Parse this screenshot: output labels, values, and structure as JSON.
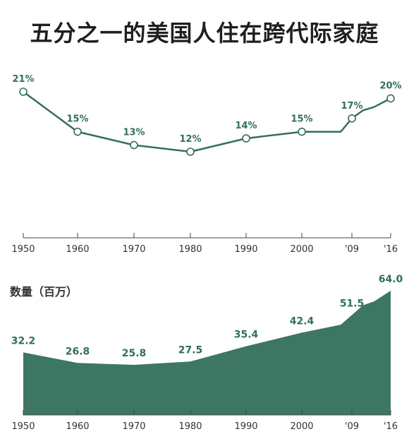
{
  "title": "五分之一的美国人住在跨代际家庭",
  "colors": {
    "accent": "#356e5c",
    "area": "#3d7764",
    "axis": "#444444"
  },
  "chart_data": [
    {
      "type": "line",
      "x_ticks": [
        "1950",
        "1960",
        "1970",
        "1980",
        "1990",
        "2000",
        "'09",
        "'16"
      ],
      "points": [
        {
          "year": 1950,
          "value": 21,
          "label": "21%"
        },
        {
          "year": 1960,
          "value": 15,
          "label": "15%"
        },
        {
          "year": 1970,
          "value": 13,
          "label": "13%"
        },
        {
          "year": 1980,
          "value": 12,
          "label": "12%"
        },
        {
          "year": 1990,
          "value": 14,
          "label": "14%"
        },
        {
          "year": 2000,
          "value": 15,
          "label": "15%"
        },
        {
          "year": 2009,
          "value": 17,
          "label": "17%"
        },
        {
          "year": 2016,
          "value": 20,
          "label": "20%"
        }
      ],
      "extra_trend_points": [
        {
          "year": 2007,
          "value": 15
        },
        {
          "year": 2011,
          "value": 18.2
        },
        {
          "year": 2013,
          "value": 18.7
        }
      ],
      "ylabel": "",
      "unit": "%"
    },
    {
      "type": "area",
      "ylabel": "数量（百万）",
      "x_ticks": [
        "1950",
        "1960",
        "1970",
        "1980",
        "1990",
        "2000",
        "'09",
        "'16"
      ],
      "points": [
        {
          "year": 1950,
          "value": 32.2,
          "label": "32.2"
        },
        {
          "year": 1960,
          "value": 26.8,
          "label": "26.8"
        },
        {
          "year": 1970,
          "value": 25.8,
          "label": "25.8"
        },
        {
          "year": 1980,
          "value": 27.5,
          "label": "27.5"
        },
        {
          "year": 1990,
          "value": 35.4,
          "label": "35.4"
        },
        {
          "year": 2000,
          "value": 42.4,
          "label": "42.4"
        },
        {
          "year": 2009,
          "value": 51.5,
          "label": "51.5"
        },
        {
          "year": 2016,
          "value": 64.0,
          "label": "64.0"
        }
      ],
      "extra_trend_points": [
        {
          "year": 2007,
          "value": 46.5
        },
        {
          "year": 2011,
          "value": 56.5
        },
        {
          "year": 2013,
          "value": 58.5
        }
      ]
    }
  ]
}
